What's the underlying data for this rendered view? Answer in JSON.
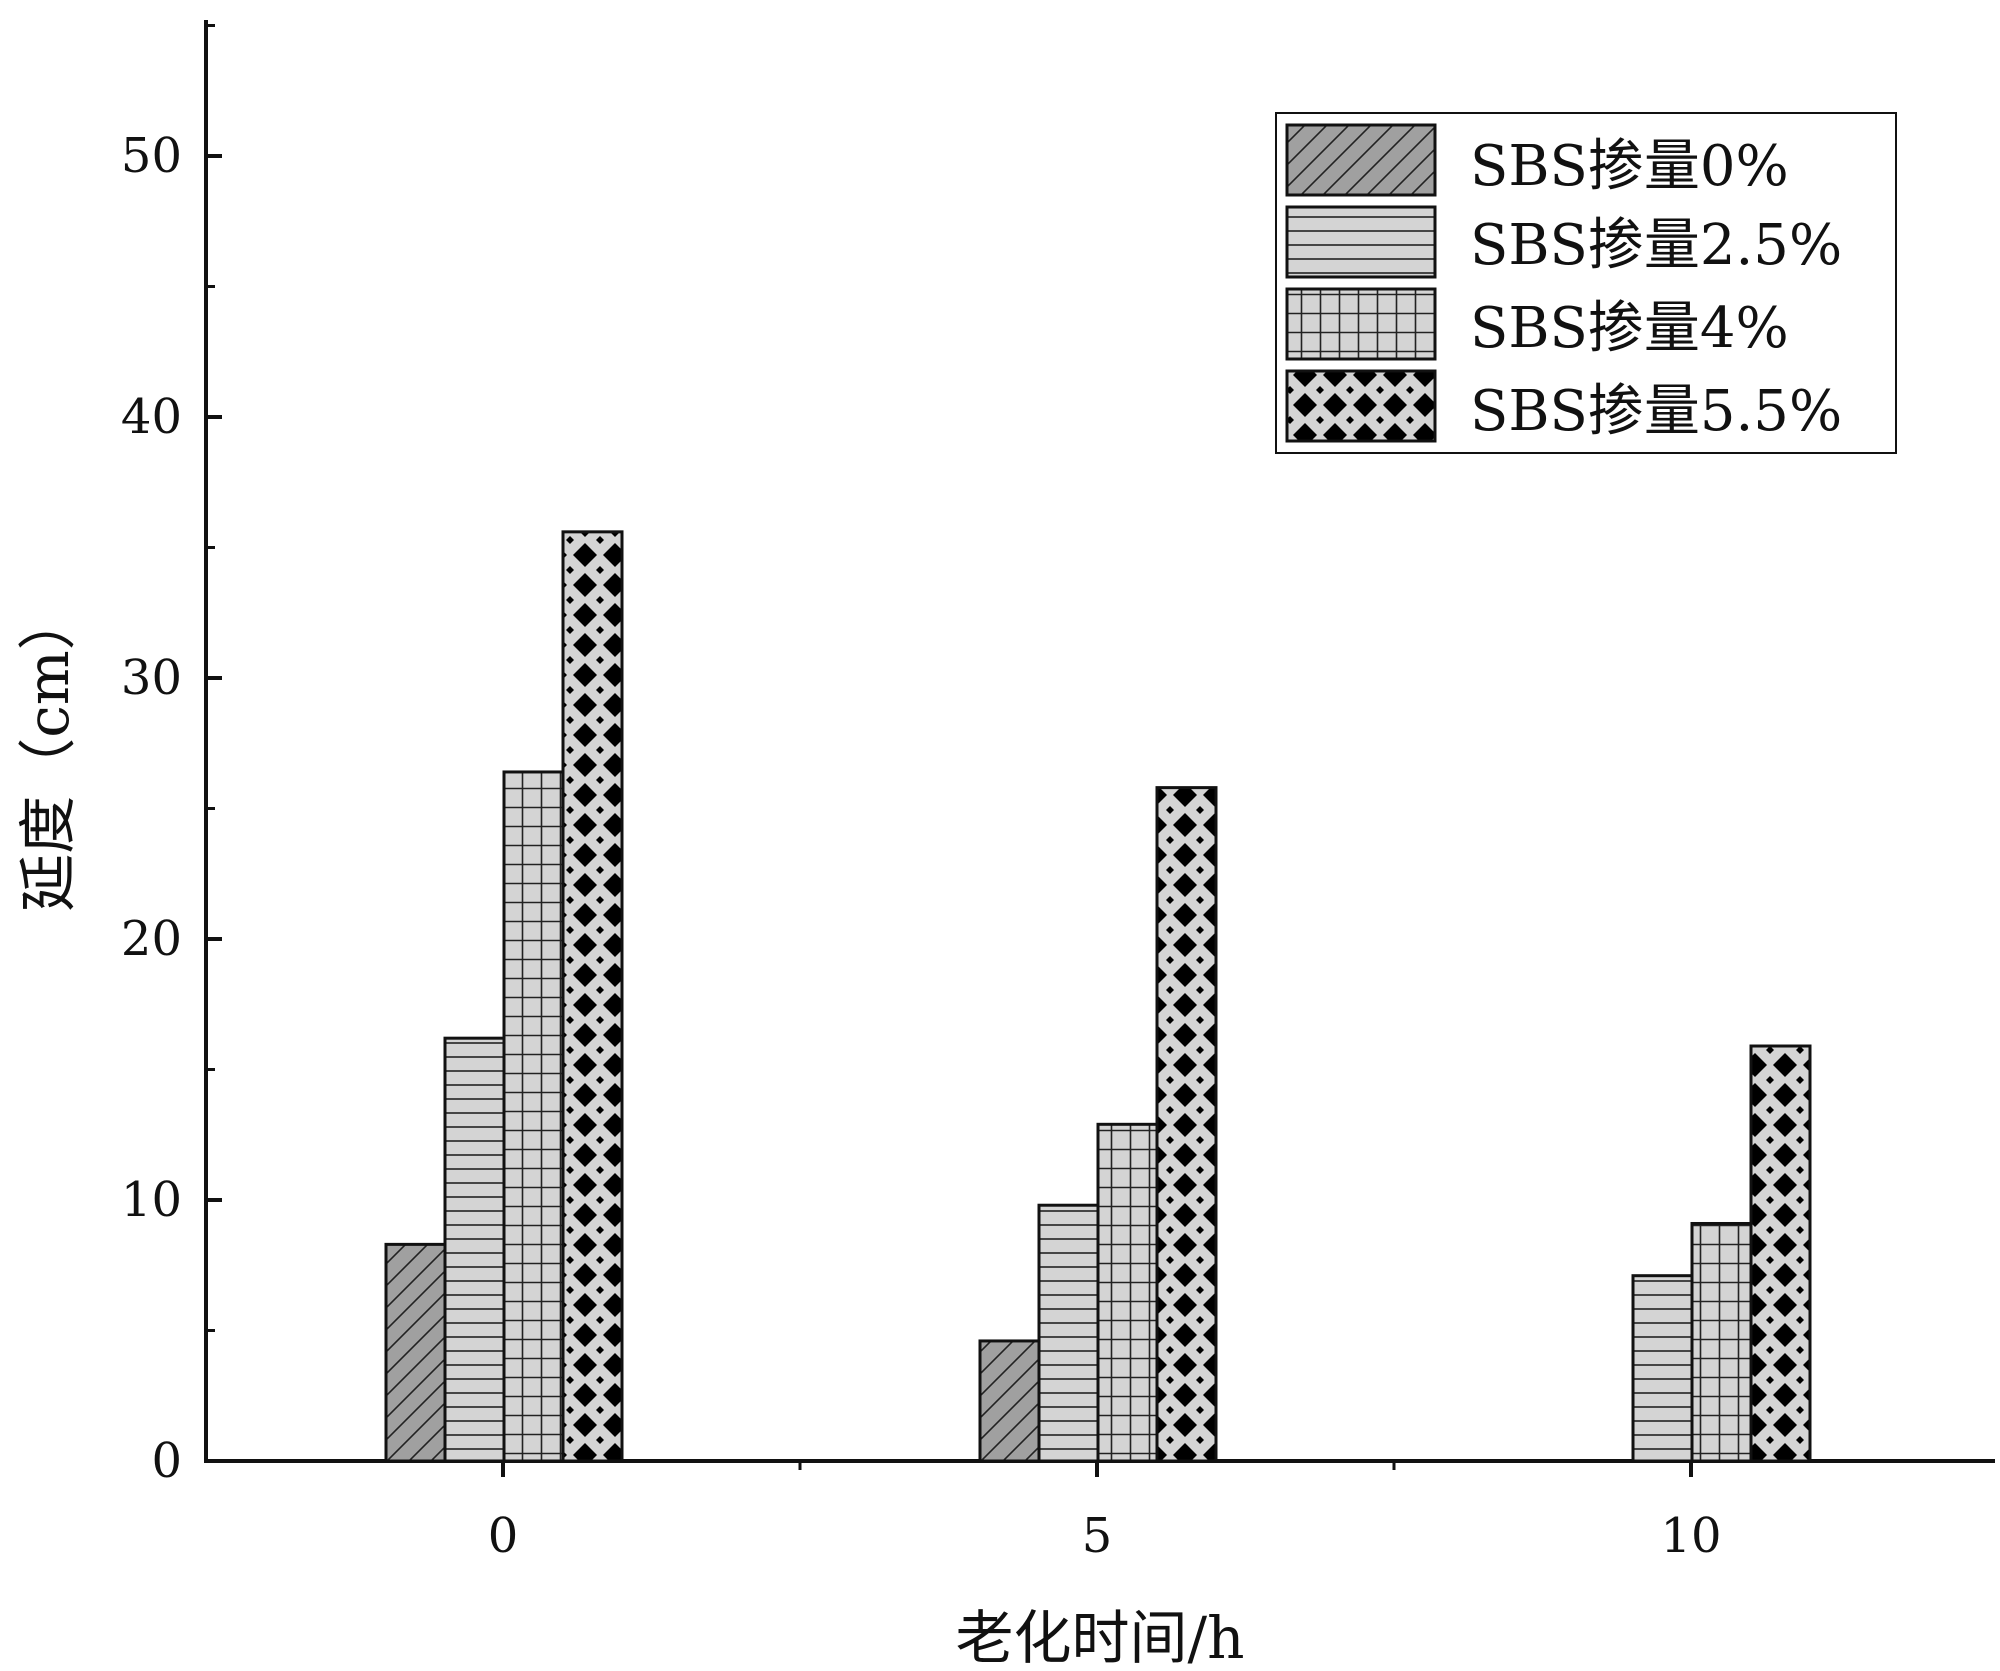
{
  "chart_data": {
    "type": "bar",
    "title": "",
    "xlabel": "老化时间/h",
    "ylabel": "延度（cm）",
    "categories": [
      "0",
      "5",
      "10"
    ],
    "series": [
      {
        "name": "SBS掺量0%",
        "values": [
          8.3,
          4.6,
          null
        ],
        "pattern": "diagonal-hatch",
        "fill": "#a0a0a0"
      },
      {
        "name": "SBS掺量2.5%",
        "values": [
          16.2,
          9.8,
          7.1
        ],
        "pattern": "horizontal-lines",
        "fill": "#d4d4d4"
      },
      {
        "name": "SBS掺量4%",
        "values": [
          26.4,
          12.9,
          9.1
        ],
        "pattern": "grid",
        "fill": "#d4d4d4"
      },
      {
        "name": "SBS掺量5.5%",
        "values": [
          35.6,
          25.8,
          15.9
        ],
        "pattern": "diamonds",
        "fill": "#d4d4d4"
      }
    ],
    "ylim": [
      0,
      55
    ],
    "yticks": [
      0,
      10,
      20,
      30,
      40,
      50
    ],
    "grid": false,
    "legend_position": "top-right"
  }
}
